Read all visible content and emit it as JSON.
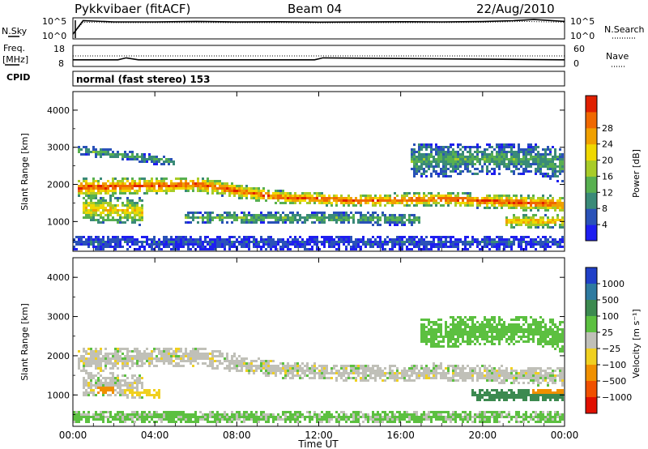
{
  "header": {
    "title": "Pykkvibaer (fitACF)",
    "beam": "Beam 04",
    "date": "22/Aug/2010"
  },
  "noise_panel": {
    "left_label": "N.Sky",
    "right_label": "N.Search",
    "yticks": [
      "10^5",
      "10^0"
    ]
  },
  "freq_panel": {
    "left_label_1": "Freq.",
    "left_label_2": "[MHz]",
    "left_ticks": [
      "18",
      "8"
    ],
    "right_label": "Nave",
    "right_ticks": [
      "60",
      "0"
    ]
  },
  "cpid": {
    "label": "CPID",
    "value": "normal (fast stereo) 153"
  },
  "power_panel": {
    "ylabel": "Slant Range [km]",
    "yticks": [
      "1000",
      "2000",
      "3000",
      "4000"
    ],
    "colorbar_label": "Power [dB]",
    "colorbar_ticks": [
      "4",
      "8",
      "12",
      "16",
      "20",
      "24",
      "28"
    ],
    "colors": [
      "#1e1ef0",
      "#2a52b8",
      "#3a8a78",
      "#58b050",
      "#a8cc28",
      "#f0d800",
      "#f0a000",
      "#f06800",
      "#e02000"
    ]
  },
  "velocity_panel": {
    "ylabel": "Slant Range [km]",
    "yticks": [
      "1000",
      "2000",
      "3000",
      "4000"
    ],
    "colorbar_label": "Velocity [m s⁻¹]",
    "colorbar_ticks": [
      "1000",
      "500",
      "100",
      "25",
      "−25",
      "−100",
      "−500",
      "−1000"
    ],
    "colors": [
      "#2040c8",
      "#2e7aa0",
      "#3c8a50",
      "#5cc040",
      "#c0c0b8",
      "#f0d020",
      "#f09000",
      "#f05000",
      "#e01000"
    ]
  },
  "x_axis": {
    "ticks": [
      "00:00",
      "04:00",
      "08:00",
      "12:00",
      "16:00",
      "20:00",
      "00:00"
    ],
    "label": "Time UT"
  },
  "chart_data": [
    {
      "type": "line",
      "panel": "noise",
      "x_range_hours": [
        0,
        24
      ],
      "ylim": [
        1,
        100000
      ],
      "log_scale": true,
      "series": [
        {
          "name": "N.Sky",
          "x": [
            0,
            0.5,
            2,
            4,
            6,
            8,
            10,
            12,
            14,
            16,
            18,
            20,
            21.5,
            22.5,
            24
          ],
          "y": [
            10,
            30000,
            15000,
            15000,
            20000,
            14000,
            16000,
            13000,
            14000,
            16000,
            15000,
            18000,
            30000,
            60000,
            20000
          ]
        },
        {
          "name": "N.Search",
          "x": [
            0,
            0.5,
            2,
            4,
            6,
            8,
            10,
            12,
            14,
            16,
            18,
            20,
            22,
            24
          ],
          "y": [
            10,
            12000,
            9000,
            9000,
            10000,
            9000,
            9000,
            8000,
            9000,
            9000,
            9500,
            11000,
            20000,
            12000
          ]
        }
      ]
    },
    {
      "type": "line",
      "panel": "frequency",
      "x_range_hours": [
        0,
        24
      ],
      "ylim": [
        8,
        18
      ],
      "y2lim": [
        0,
        60
      ],
      "series": [
        {
          "name": "Freq.",
          "x": [
            0,
            2.2,
            2.6,
            3.2,
            11.8,
            12.2,
            24
          ],
          "y": [
            11,
            11,
            12,
            11,
            11,
            12,
            11
          ]
        },
        {
          "name": "Nave",
          "x": [
            0,
            24
          ],
          "y": [
            30,
            30
          ]
        }
      ]
    },
    {
      "type": "heatmap",
      "panel": "power",
      "x_range_hours": [
        0,
        24
      ],
      "ylim": [
        200,
        4500
      ],
      "zlim": [
        0,
        30
      ],
      "z_label": "Power [dB]",
      "bands": [
        {
          "t": [
            0.2,
            6,
            10,
            14,
            18,
            22,
            24
          ],
          "center": [
            1900,
            2000,
            1650,
            1550,
            1600,
            1500,
            1450
          ],
          "halfwidth": [
            250,
            200,
            170,
            170,
            180,
            200,
            220
          ],
          "peak": 27
        },
        {
          "t": [
            0.5,
            3.5
          ],
          "center": [
            1350,
            1250
          ],
          "halfwidth": [
            350,
            350
          ],
          "peak": 20
        },
        {
          "t": [
            0.2,
            5
          ],
          "center": [
            2950,
            2600
          ],
          "halfwidth": [
            140,
            120
          ],
          "peak": 11
        },
        {
          "t": [
            16.5,
            22.5,
            24
          ],
          "center": [
            2650,
            2700,
            2500
          ],
          "halfwidth": [
            450,
            400,
            450
          ],
          "peak": 11
        },
        {
          "t": [
            21.2,
            24
          ],
          "center": [
            1000,
            1000
          ],
          "halfwidth": [
            180,
            180
          ],
          "peak": 22
        },
        {
          "t": [
            5.5,
            17
          ],
          "center": [
            1100,
            1050
          ],
          "halfwidth": [
            160,
            160
          ],
          "peak": 12
        },
        {
          "t": [
            0,
            24
          ],
          "center": [
            420,
            420
          ],
          "halfwidth": [
            180,
            180
          ],
          "peak": 5
        }
      ]
    },
    {
      "type": "heatmap",
      "panel": "velocity",
      "x_range_hours": [
        0,
        24
      ],
      "ylim": [
        200,
        4500
      ],
      "zlim": [
        -1000,
        1000
      ],
      "z_label": "Velocity [m s⁻¹]",
      "bands": [
        {
          "t": [
            0.2,
            6,
            10,
            14,
            18,
            22,
            24
          ],
          "center": [
            1900,
            2000,
            1650,
            1550,
            1600,
            1500,
            1450
          ],
          "halfwidth": [
            300,
            240,
            200,
            200,
            210,
            220,
            240
          ],
          "value": 0
        },
        {
          "t": [
            0.5,
            3.5
          ],
          "center": [
            1300,
            1200
          ],
          "halfwidth": [
            300,
            300
          ],
          "value": 0
        },
        {
          "t": [
            1.2,
            2
          ],
          "center": [
            1200,
            1150
          ],
          "halfwidth": [
            200,
            150
          ],
          "value": -300
        },
        {
          "t": [
            2.5,
            4.3
          ],
          "center": [
            1100,
            1000
          ],
          "halfwidth": [
            120,
            120
          ],
          "value": -60
        },
        {
          "t": [
            17,
            22.5,
            24
          ],
          "center": [
            2600,
            2700,
            2500
          ],
          "halfwidth": [
            380,
            350,
            400
          ],
          "value": 60
        },
        {
          "t": [
            19.5,
            24
          ],
          "center": [
            1000,
            1000
          ],
          "halfwidth": [
            160,
            160
          ],
          "value": 200
        },
        {
          "t": [
            22.5,
            24
          ],
          "center": [
            1050,
            1050
          ],
          "halfwidth": [
            120,
            120
          ],
          "value": -350
        },
        {
          "t": [
            0,
            24
          ],
          "center": [
            420,
            420
          ],
          "halfwidth": [
            160,
            160
          ],
          "value": 40
        }
      ]
    }
  ]
}
